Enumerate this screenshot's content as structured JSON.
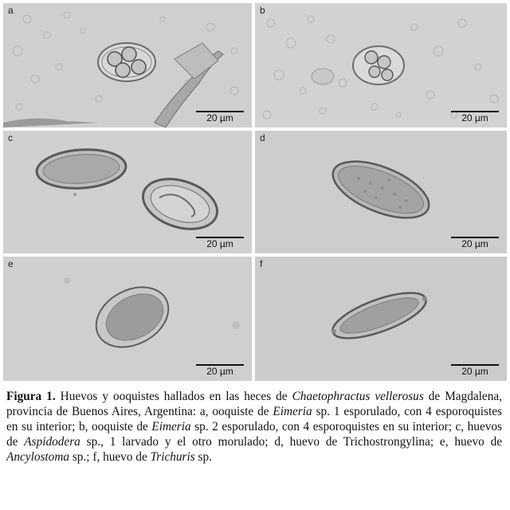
{
  "panels": [
    {
      "label": "a",
      "scale": "20 µm"
    },
    {
      "label": "b",
      "scale": "20 µm"
    },
    {
      "label": "c",
      "scale": "20 µm"
    },
    {
      "label": "d",
      "scale": "20 µm"
    },
    {
      "label": "e",
      "scale": "20 µm"
    },
    {
      "label": "f",
      "scale": "20 µm"
    }
  ],
  "caption": {
    "figure_label": "Figura 1.",
    "p1": " Huevos y ooquistes hallados en las heces de ",
    "species": "Chaetophractus vellerosus",
    "p2": " de Magdalena, provincia de Buenos Aires, Argentina: a, ooquiste de ",
    "genus_eimeria_1": "Eimeria",
    "p3": " sp. 1 esporulado, con 4 esporoquistes en su interior; b, ooquiste de ",
    "genus_eimeria_2": "Eimeria",
    "p4": " sp. 2 esporulado, con 4 esporoquistes en su interior; c, huevos de ",
    "genus_aspidodera": "Aspidodera",
    "p5": " sp., 1 larvado y el otro morulado; d, huevo de Trichostrongylina; e, huevo de ",
    "genus_ancylostoma": "Ancylostoma",
    "p6": " sp.; f, huevo de ",
    "genus_trichuris": "Trichuris",
    "p7": " sp."
  }
}
